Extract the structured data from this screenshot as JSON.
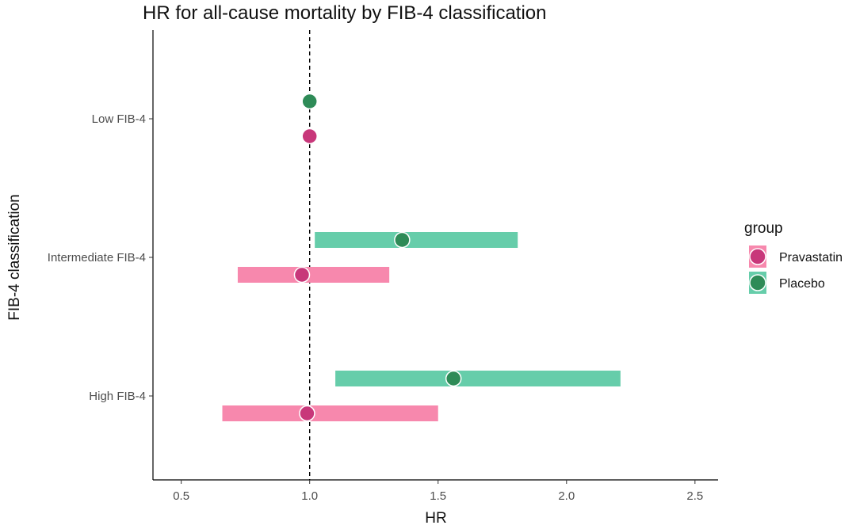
{
  "chart_data": {
    "type": "forest",
    "title": "HR for all-cause mortality by FIB-4 classification",
    "xlabel": "HR",
    "ylabel": "FIB-4 classification",
    "xlim": [
      0.39,
      2.59
    ],
    "x_ticks": [
      0.5,
      1.0,
      1.5,
      2.0,
      2.5
    ],
    "x_tick_labels": [
      "0.5",
      "1.0",
      "1.5",
      "2.0",
      "2.5"
    ],
    "reference_line": 1.0,
    "categories": [
      "Low FIB-4",
      "Intermediate FIB-4",
      "High FIB-4"
    ],
    "legend": {
      "title": "group",
      "position": "right"
    },
    "series": [
      {
        "name": "Pravastatin",
        "bar_color": "#f788ad",
        "point_color": "#c8377a",
        "points": [
          {
            "category": "Low FIB-4",
            "hr": 1.0,
            "lower": null,
            "upper": null
          },
          {
            "category": "Intermediate FIB-4",
            "hr": 0.97,
            "lower": 0.72,
            "upper": 1.31
          },
          {
            "category": "High FIB-4",
            "hr": 0.99,
            "lower": 0.66,
            "upper": 1.5
          }
        ]
      },
      {
        "name": "Placebo",
        "bar_color": "#66cdaa",
        "point_color": "#2e8b57",
        "points": [
          {
            "category": "Low FIB-4",
            "hr": 1.0,
            "lower": null,
            "upper": null
          },
          {
            "category": "Intermediate FIB-4",
            "hr": 1.36,
            "lower": 1.02,
            "upper": 1.81
          },
          {
            "category": "High FIB-4",
            "hr": 1.56,
            "lower": 1.1,
            "upper": 2.21
          }
        ]
      }
    ]
  }
}
